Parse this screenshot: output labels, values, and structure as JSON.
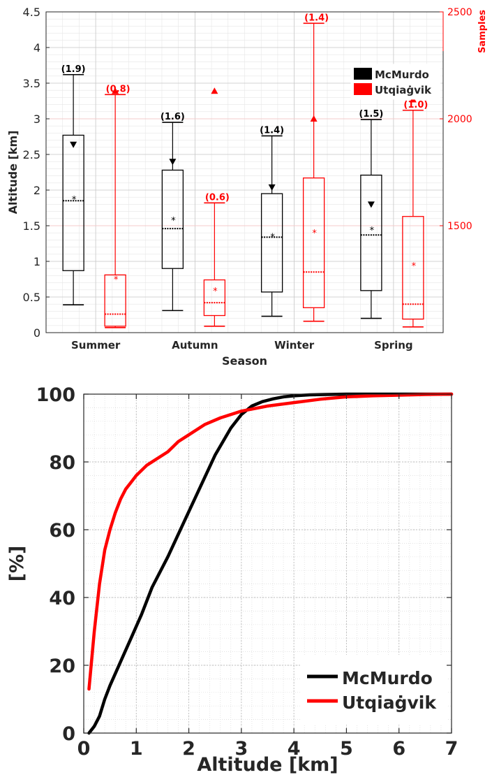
{
  "chart_data": [
    {
      "type": "box",
      "xlabel": "Season",
      "ylabel": "Altitude [km]",
      "y2label": "Samples",
      "ylim": [
        0,
        4.5
      ],
      "yticks": [
        "0",
        "0.5",
        "1",
        "1.5",
        "2",
        "2.5",
        "3",
        "3.5",
        "4",
        "4.5"
      ],
      "y2lim": [
        1000,
        2500
      ],
      "y2ticks": [
        "1500",
        "2000",
        "2500"
      ],
      "grid": true,
      "legend_position": "top-right",
      "categories": [
        "Summer",
        "Autumn",
        "Winter",
        "Spring"
      ],
      "series": [
        {
          "name": "McMurdo",
          "color": "#000000",
          "boxes": [
            {
              "min": 0.39,
              "q1": 0.87,
              "median": 1.85,
              "q3": 2.77,
              "max": 3.62,
              "mean": 1.88,
              "label": "(1.9)"
            },
            {
              "min": 0.31,
              "q1": 0.9,
              "median": 1.46,
              "q3": 2.28,
              "max": 2.95,
              "mean": 1.59,
              "label": "(1.6)"
            },
            {
              "min": 0.23,
              "q1": 0.57,
              "median": 1.34,
              "q3": 1.95,
              "max": 2.76,
              "mean": 1.36,
              "label": "(1.4)"
            },
            {
              "min": 0.2,
              "q1": 0.59,
              "median": 1.37,
              "q3": 2.21,
              "max": 2.99,
              "mean": 1.45,
              "label": "(1.5)"
            }
          ],
          "samples": [
            1880,
            1800,
            1680,
            1600
          ]
        },
        {
          "name": "Utqiaġvik",
          "color": "#ff0000",
          "boxes": [
            {
              "min": 0.07,
              "q1": 0.09,
              "median": 0.26,
              "q3": 0.81,
              "max": 3.34,
              "mean": 0.76,
              "label": "(0.8)"
            },
            {
              "min": 0.09,
              "q1": 0.24,
              "median": 0.42,
              "q3": 0.74,
              "max": 1.82,
              "mean": 0.6,
              "label": "(0.6)"
            },
            {
              "min": 0.16,
              "q1": 0.35,
              "median": 0.85,
              "q3": 2.17,
              "max": 4.34,
              "mean": 1.41,
              "label": "(1.4)"
            },
            {
              "min": 0.08,
              "q1": 0.19,
              "median": 0.4,
              "q3": 1.63,
              "max": 3.12,
              "mean": 0.95,
              "label": "(1.0)"
            }
          ],
          "samples": [
            2130,
            2130,
            2000,
            2090
          ]
        }
      ]
    },
    {
      "type": "line",
      "xlabel": "Altitude [km]",
      "ylabel": "[%]",
      "xlim": [
        0,
        7
      ],
      "ylim": [
        0,
        100
      ],
      "xticks": [
        "0",
        "1",
        "2",
        "3",
        "4",
        "5",
        "6",
        "7"
      ],
      "yticks": [
        "0",
        "20",
        "40",
        "60",
        "80",
        "100"
      ],
      "grid": true,
      "legend_position": "bottom-right",
      "series": [
        {
          "name": "McMurdo",
          "color": "#000000",
          "x": [
            0.1,
            0.2,
            0.3,
            0.4,
            0.5,
            0.7,
            0.9,
            1.1,
            1.3,
            1.6,
            1.9,
            2.2,
            2.5,
            2.8,
            3.0,
            3.2,
            3.4,
            3.6,
            3.8,
            4.0,
            4.3,
            4.6,
            5.0,
            5.5,
            6.0,
            6.5,
            7.0
          ],
          "y": [
            0,
            2,
            5,
            10,
            14,
            21,
            28,
            35,
            43,
            52,
            62,
            72,
            82,
            90,
            94,
            96.5,
            97.8,
            98.6,
            99.2,
            99.5,
            99.8,
            99.9,
            100,
            100,
            100,
            100,
            100
          ]
        },
        {
          "name": "Utqiaġvik",
          "color": "#ff0000",
          "x": [
            0.1,
            0.2,
            0.3,
            0.4,
            0.5,
            0.6,
            0.7,
            0.8,
            0.9,
            1.0,
            1.2,
            1.4,
            1.6,
            1.8,
            2.0,
            2.3,
            2.6,
            3.0,
            3.5,
            4.0,
            4.5,
            5.0,
            5.5,
            6.0,
            6.5,
            7.0
          ],
          "y": [
            13,
            30,
            44,
            54,
            60,
            65,
            69,
            72,
            74,
            76,
            79,
            81,
            83,
            86,
            88,
            91,
            93,
            95,
            96.5,
            97.5,
            98.5,
            99.2,
            99.5,
            99.7,
            99.9,
            100
          ]
        }
      ]
    }
  ]
}
